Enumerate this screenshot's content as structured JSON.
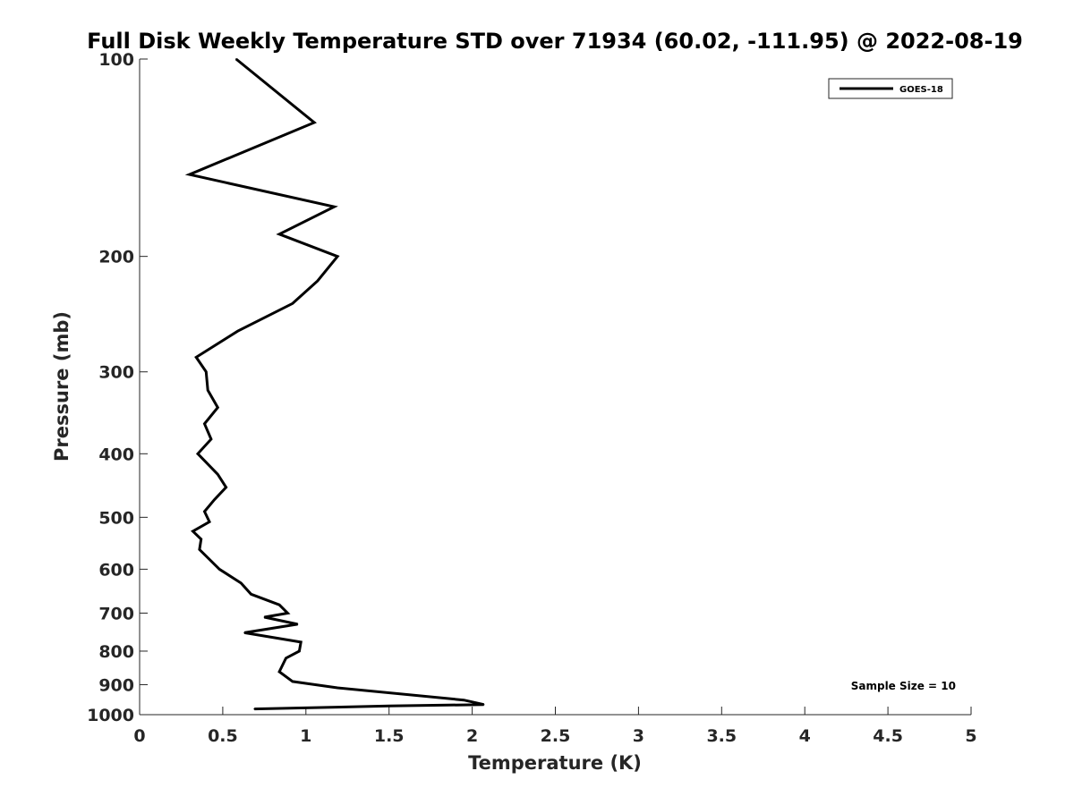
{
  "chart_data": {
    "type": "line",
    "title": "Full Disk Weekly Temperature STD over 71934 (60.02, -111.95) @ 2022-08-19",
    "xlabel": "Temperature (K)",
    "ylabel": "Pressure (mb)",
    "xlim": [
      0,
      5
    ],
    "ylim": [
      100,
      1000
    ],
    "y_scale": "log",
    "y_reversed": true,
    "x_ticks": [
      "0",
      "0.5",
      "1",
      "1.5",
      "2",
      "2.5",
      "3",
      "3.5",
      "4",
      "4.5",
      "5"
    ],
    "y_ticks": [
      "100",
      "200",
      "300",
      "400",
      "500",
      "600",
      "700",
      "800",
      "900",
      "1000"
    ],
    "grid": false,
    "legend_position": "top-right",
    "annotation": "Sample Size = 10",
    "series": [
      {
        "name": "GOES-18",
        "color": "#000000",
        "points": [
          [
            0.58,
            100
          ],
          [
            1.05,
            125
          ],
          [
            0.3,
            150
          ],
          [
            1.17,
            168
          ],
          [
            0.84,
            185
          ],
          [
            1.19,
            200
          ],
          [
            1.07,
            218
          ],
          [
            0.92,
            236
          ],
          [
            0.59,
            260
          ],
          [
            0.34,
            285
          ],
          [
            0.4,
            300
          ],
          [
            0.41,
            320
          ],
          [
            0.47,
            340
          ],
          [
            0.39,
            360
          ],
          [
            0.43,
            380
          ],
          [
            0.35,
            400
          ],
          [
            0.47,
            430
          ],
          [
            0.52,
            450
          ],
          [
            0.45,
            470
          ],
          [
            0.39,
            490
          ],
          [
            0.42,
            508
          ],
          [
            0.32,
            525
          ],
          [
            0.37,
            540
          ],
          [
            0.36,
            560
          ],
          [
            0.48,
            600
          ],
          [
            0.61,
            630
          ],
          [
            0.67,
            655
          ],
          [
            0.84,
            680
          ],
          [
            0.89,
            700
          ],
          [
            0.75,
            710
          ],
          [
            0.95,
            728
          ],
          [
            0.63,
            750
          ],
          [
            0.97,
            775
          ],
          [
            0.96,
            800
          ],
          [
            0.88,
            820
          ],
          [
            0.84,
            860
          ],
          [
            0.92,
            890
          ],
          [
            1.19,
            910
          ],
          [
            1.95,
            950
          ],
          [
            2.07,
            965
          ],
          [
            1.5,
            970
          ],
          [
            0.69,
            980
          ]
        ]
      }
    ]
  }
}
